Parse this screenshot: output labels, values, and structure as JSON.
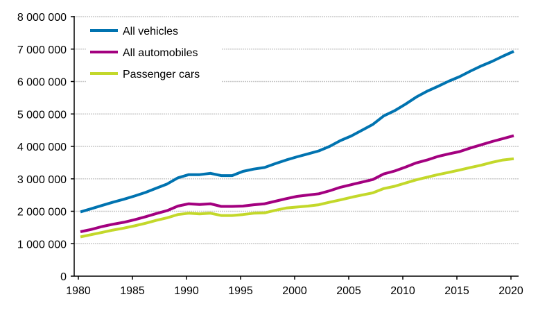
{
  "chart_data": {
    "type": "line",
    "title": "",
    "xlabel": "",
    "ylabel": "",
    "x": [
      1980,
      1981,
      1982,
      1983,
      1984,
      1985,
      1986,
      1987,
      1988,
      1989,
      1990,
      1991,
      1992,
      1993,
      1994,
      1995,
      1996,
      1997,
      1998,
      1999,
      2000,
      2001,
      2002,
      2003,
      2004,
      2005,
      2006,
      2007,
      2008,
      2009,
      2010,
      2011,
      2012,
      2013,
      2014,
      2015,
      2016,
      2017,
      2018,
      2019,
      2020
    ],
    "xlim": [
      1980,
      2020
    ],
    "ylim": [
      0,
      8000000
    ],
    "x_ticks": [
      "1980",
      "1985",
      "1990",
      "1995",
      "2000",
      "2005",
      "2010",
      "2015",
      "2020"
    ],
    "y_ticks": [
      "0",
      "1 000 000",
      "2 000 000",
      "3 000 000",
      "4 000 000",
      "5 000 000",
      "6 000 000",
      "7 000 000",
      "8 000 000"
    ],
    "grid": "horizontal",
    "legend_position": "top-left",
    "series": [
      {
        "name": "All vehicles",
        "color": "#0073b0",
        "values": [
          1980000,
          2080000,
          2180000,
          2280000,
          2370000,
          2470000,
          2580000,
          2710000,
          2840000,
          3030000,
          3130000,
          3130000,
          3170000,
          3100000,
          3100000,
          3230000,
          3300000,
          3350000,
          3470000,
          3580000,
          3680000,
          3770000,
          3860000,
          4000000,
          4180000,
          4320000,
          4500000,
          4680000,
          4940000,
          5100000,
          5300000,
          5520000,
          5700000,
          5850000,
          6010000,
          6150000,
          6320000,
          6480000,
          6620000,
          6780000,
          6930000
        ]
      },
      {
        "name": "All automobiles",
        "color": "#a3007f",
        "values": [
          1370000,
          1440000,
          1530000,
          1600000,
          1660000,
          1740000,
          1830000,
          1930000,
          2020000,
          2160000,
          2230000,
          2210000,
          2230000,
          2150000,
          2150000,
          2160000,
          2200000,
          2230000,
          2310000,
          2390000,
          2460000,
          2500000,
          2540000,
          2630000,
          2740000,
          2820000,
          2900000,
          2980000,
          3150000,
          3240000,
          3360000,
          3490000,
          3580000,
          3690000,
          3770000,
          3840000,
          3950000,
          4050000,
          4150000,
          4240000,
          4330000
        ]
      },
      {
        "name": "Passenger cars",
        "color": "#c3d82a",
        "values": [
          1210000,
          1280000,
          1350000,
          1420000,
          1480000,
          1550000,
          1630000,
          1720000,
          1800000,
          1900000,
          1940000,
          1920000,
          1940000,
          1870000,
          1870000,
          1900000,
          1940000,
          1950000,
          2030000,
          2100000,
          2130000,
          2160000,
          2200000,
          2280000,
          2350000,
          2430000,
          2500000,
          2570000,
          2700000,
          2770000,
          2870000,
          2970000,
          3050000,
          3130000,
          3200000,
          3270000,
          3350000,
          3420000,
          3510000,
          3580000,
          3620000
        ]
      }
    ]
  }
}
